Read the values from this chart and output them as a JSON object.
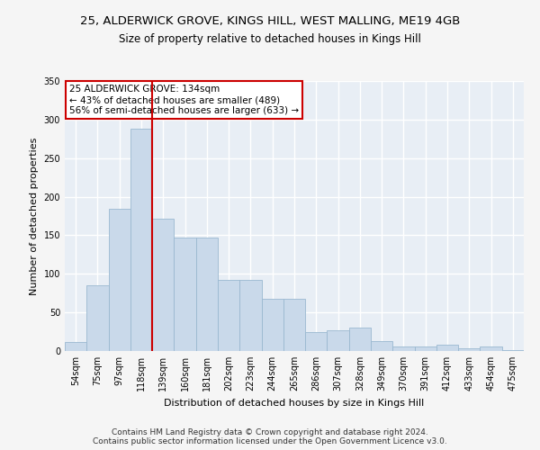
{
  "title_line1": "25, ALDERWICK GROVE, KINGS HILL, WEST MALLING, ME19 4GB",
  "title_line2": "Size of property relative to detached houses in Kings Hill",
  "xlabel": "Distribution of detached houses by size in Kings Hill",
  "ylabel": "Number of detached properties",
  "bar_labels": [
    "54sqm",
    "75sqm",
    "97sqm",
    "118sqm",
    "139sqm",
    "160sqm",
    "181sqm",
    "202sqm",
    "223sqm",
    "244sqm",
    "265sqm",
    "286sqm",
    "307sqm",
    "328sqm",
    "349sqm",
    "370sqm",
    "391sqm",
    "412sqm",
    "433sqm",
    "454sqm",
    "475sqm"
  ],
  "bar_values": [
    12,
    85,
    184,
    288,
    172,
    147,
    147,
    92,
    92,
    68,
    68,
    25,
    27,
    30,
    13,
    6,
    6,
    8,
    3,
    6,
    1
  ],
  "bar_color": "#c9d9ea",
  "bar_edgecolor": "#9ab8d0",
  "vline_x_idx": 4,
  "vline_color": "#cc0000",
  "annotation_title": "25 ALDERWICK GROVE: 134sqm",
  "annotation_line1": "← 43% of detached houses are smaller (489)",
  "annotation_line2": "56% of semi-detached houses are larger (633) →",
  "annotation_box_facecolor": "#ffffff",
  "annotation_box_edgecolor": "#cc0000",
  "ylim": [
    0,
    350
  ],
  "yticks": [
    0,
    50,
    100,
    150,
    200,
    250,
    300,
    350
  ],
  "footer_line1": "Contains HM Land Registry data © Crown copyright and database right 2024.",
  "footer_line2": "Contains public sector information licensed under the Open Government Licence v3.0.",
  "plot_bg_color": "#e8eef5",
  "fig_bg_color": "#f5f5f5",
  "grid_color": "#ffffff",
  "title_fontsize": 9.5,
  "subtitle_fontsize": 8.5,
  "tick_fontsize": 7,
  "axis_label_fontsize": 8,
  "footer_fontsize": 6.5
}
